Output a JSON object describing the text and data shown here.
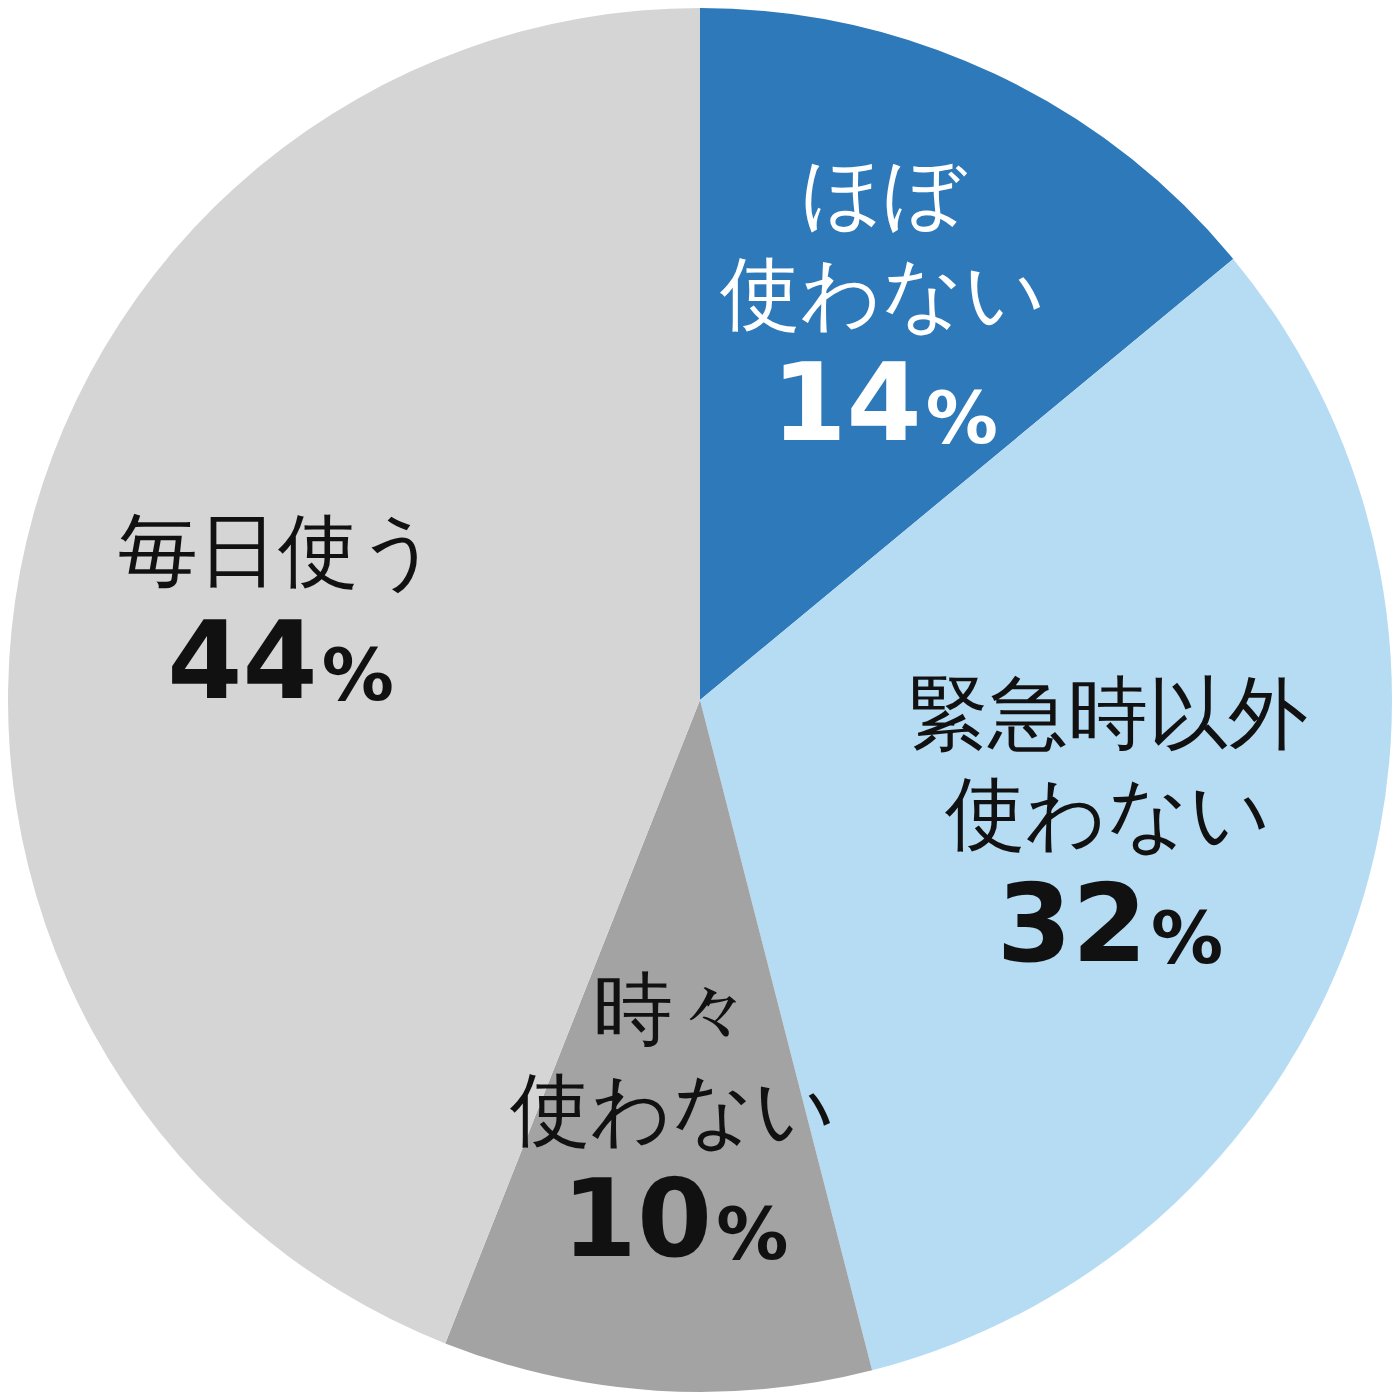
{
  "chart_data": {
    "type": "pie",
    "categories": [
      "ほぼ使わない",
      "緊急時以外使わない",
      "時々使わない",
      "毎日使う"
    ],
    "values": [
      14,
      32,
      10,
      44
    ],
    "value_labels": [
      "14%",
      "32%",
      "10%",
      "44%"
    ],
    "colors": [
      "#2e79b9",
      "#b6dcf4",
      "#a3a3a3",
      "#d5d5d5"
    ],
    "legend": false
  }
}
